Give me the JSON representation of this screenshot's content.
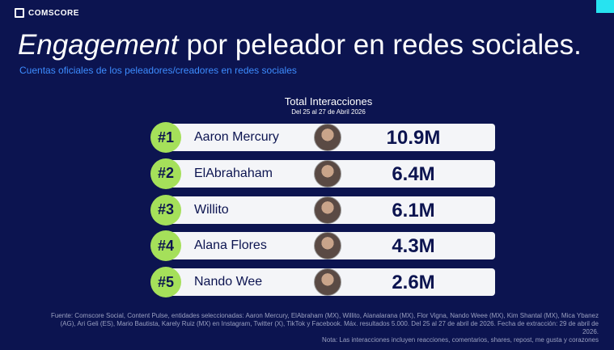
{
  "brand": "COMSCORE",
  "title": {
    "emphasis": "Engagement",
    "rest": "por peleador en redes sociales."
  },
  "subtitle": "Cuentas oficiales de los peleadores/creadores en redes sociales",
  "table": {
    "title": "Total Interacciones",
    "subtitle": "Del 25 al 27 de Abril 2026",
    "rows": [
      {
        "rank": "#1",
        "name": "Aaron Mercury",
        "value": "10.9M"
      },
      {
        "rank": "#2",
        "name": "ElAbrahaham",
        "value": "6.4M"
      },
      {
        "rank": "#3",
        "name": "Willito",
        "value": "6.1M"
      },
      {
        "rank": "#4",
        "name": "Alana Flores",
        "value": "4.3M"
      },
      {
        "rank": "#5",
        "name": "Nando Wee",
        "value": "2.6M"
      }
    ]
  },
  "footnote": {
    "source": "Fuente: Comscore Social, Content Pulse, entidades seleccionadas: Aaron Mercury, ElAbraham (MX), Willito, Alanalarana (MX), Flor Vigna, Nando Weee (MX), Kim Shantal (MX), Mica Ybanez (AG), Ari Geli (ES), Mario Bautista, Karely Ruiz (MX) en Instagram, Twitter (X), TikTok y Facebook. Máx. resultados 5.000. Del 25 al 27 de abril de 2026. Fecha de extracción: 29 de abril de 2026.",
    "note": "Nota: Las interacciones incluyen reacciones, comentarios, shares, repost, me gusta y corazones"
  }
}
